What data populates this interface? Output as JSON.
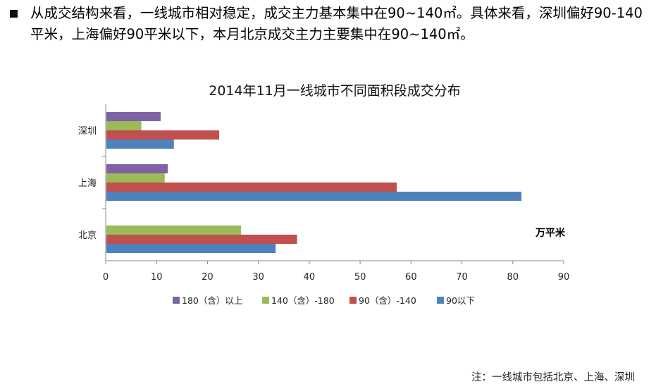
{
  "bullet": {
    "text": "从成交结构来看，一线城市相对稳定，成交主力基本集中在90~140㎡。具体来看，深圳偏好90-140平米，上海偏好90平米以下，本月北京成交主力主要集中在90~140㎡。"
  },
  "chart_data": {
    "type": "bar",
    "orientation": "horizontal",
    "title": "2014年11月一线城市不同面积段成交分布",
    "unit_label": "万平米",
    "categories": [
      "深圳",
      "上海",
      "北京"
    ],
    "xlim": [
      0,
      90
    ],
    "xticks": [
      0,
      10,
      20,
      30,
      40,
      50,
      60,
      70,
      80,
      90
    ],
    "grid": false,
    "legend_position": "bottom",
    "series": [
      {
        "name": "180（含）以上",
        "color": "#7f62a3",
        "values": [
          10.8,
          12.2,
          0
        ]
      },
      {
        "name": "140（含）-180",
        "color": "#9bbb59",
        "values": [
          7.0,
          11.6,
          26.6
        ]
      },
      {
        "name": "90（含）-140",
        "color": "#c0504d",
        "values": [
          22.3,
          57.2,
          37.6
        ]
      },
      {
        "name": "90以下",
        "color": "#4f81bd",
        "values": [
          13.4,
          81.7,
          33.4
        ]
      }
    ]
  },
  "note": "注：一线城市包括北京、上海、深圳"
}
